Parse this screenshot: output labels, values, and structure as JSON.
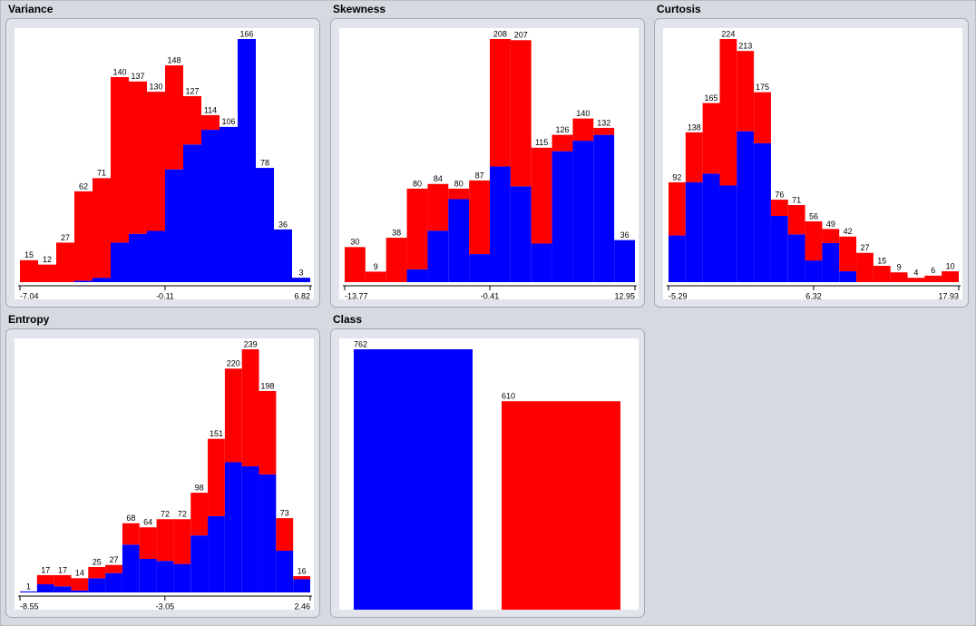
{
  "chart_data": [
    {
      "type": "histogram",
      "title": "Variance",
      "xlim": [
        -7.04,
        6.82
      ],
      "xticks": [
        -7.04,
        -0.11,
        6.82
      ],
      "series": [
        {
          "color": "#0000ff",
          "values": [
            0,
            0,
            0,
            1,
            3,
            27,
            33,
            35,
            77,
            94,
            104,
            106,
            166,
            78,
            36,
            3
          ]
        },
        {
          "color": "#ff0000",
          "values": [
            15,
            12,
            27,
            61,
            68,
            113,
            104,
            95,
            71,
            33,
            10,
            0,
            0,
            0,
            0,
            0
          ]
        }
      ],
      "totals": [
        15,
        12,
        27,
        62,
        71,
        140,
        137,
        130,
        148,
        127,
        114,
        106,
        166,
        78,
        36,
        3
      ]
    },
    {
      "type": "histogram",
      "title": "Skewness",
      "xlim": [
        -13.77,
        12.95
      ],
      "xticks": [
        -13.77,
        -0.41,
        12.95
      ],
      "series": [
        {
          "color": "#0000ff",
          "values": [
            0,
            0,
            0,
            11,
            44,
            71,
            24,
            99,
            82,
            33,
            112,
            121,
            126,
            36
          ]
        },
        {
          "color": "#ff0000",
          "values": [
            30,
            9,
            38,
            69,
            40,
            9,
            63,
            109,
            125,
            82,
            14,
            19,
            6,
            0
          ]
        }
      ],
      "totals": [
        30,
        9,
        38,
        80,
        84,
        80,
        87,
        208,
        207,
        115,
        126,
        140,
        132,
        36
      ]
    },
    {
      "type": "histogram",
      "title": "Curtosis",
      "xlim": [
        -5.29,
        17.93
      ],
      "xticks": [
        -5.29,
        6.32,
        17.93
      ],
      "series": [
        {
          "color": "#0000ff",
          "values": [
            43,
            92,
            100,
            89,
            139,
            128,
            61,
            44,
            20,
            36,
            10,
            0,
            0,
            0,
            0,
            0,
            0
          ]
        },
        {
          "color": "#ff0000",
          "values": [
            49,
            46,
            65,
            135,
            74,
            47,
            15,
            27,
            36,
            13,
            32,
            27,
            15,
            9,
            4,
            6,
            10
          ]
        }
      ],
      "totals": [
        92,
        138,
        165,
        224,
        213,
        175,
        76,
        71,
        56,
        49,
        42,
        27,
        15,
        9,
        4,
        6,
        10
      ]
    },
    {
      "type": "histogram",
      "title": "Entropy",
      "xlim": [
        -8.55,
        2.46
      ],
      "xticks": [
        -8.55,
        -3.05,
        2.46
      ],
      "series": [
        {
          "color": "#0000ff",
          "values": [
            1,
            8,
            6,
            2,
            14,
            19,
            47,
            33,
            31,
            28,
            56,
            75,
            128,
            124,
            116,
            41,
            13
          ]
        },
        {
          "color": "#ff0000",
          "values": [
            0,
            9,
            11,
            12,
            11,
            8,
            21,
            31,
            41,
            44,
            42,
            76,
            92,
            115,
            82,
            32,
            3
          ]
        }
      ],
      "totals": [
        1,
        17,
        17,
        14,
        25,
        27,
        68,
        64,
        72,
        72,
        98,
        151,
        220,
        239,
        198,
        73,
        16
      ]
    },
    {
      "type": "bar",
      "title": "Class",
      "values": [
        762,
        610
      ],
      "colors": [
        "#0000ff",
        "#ff0000"
      ]
    }
  ]
}
